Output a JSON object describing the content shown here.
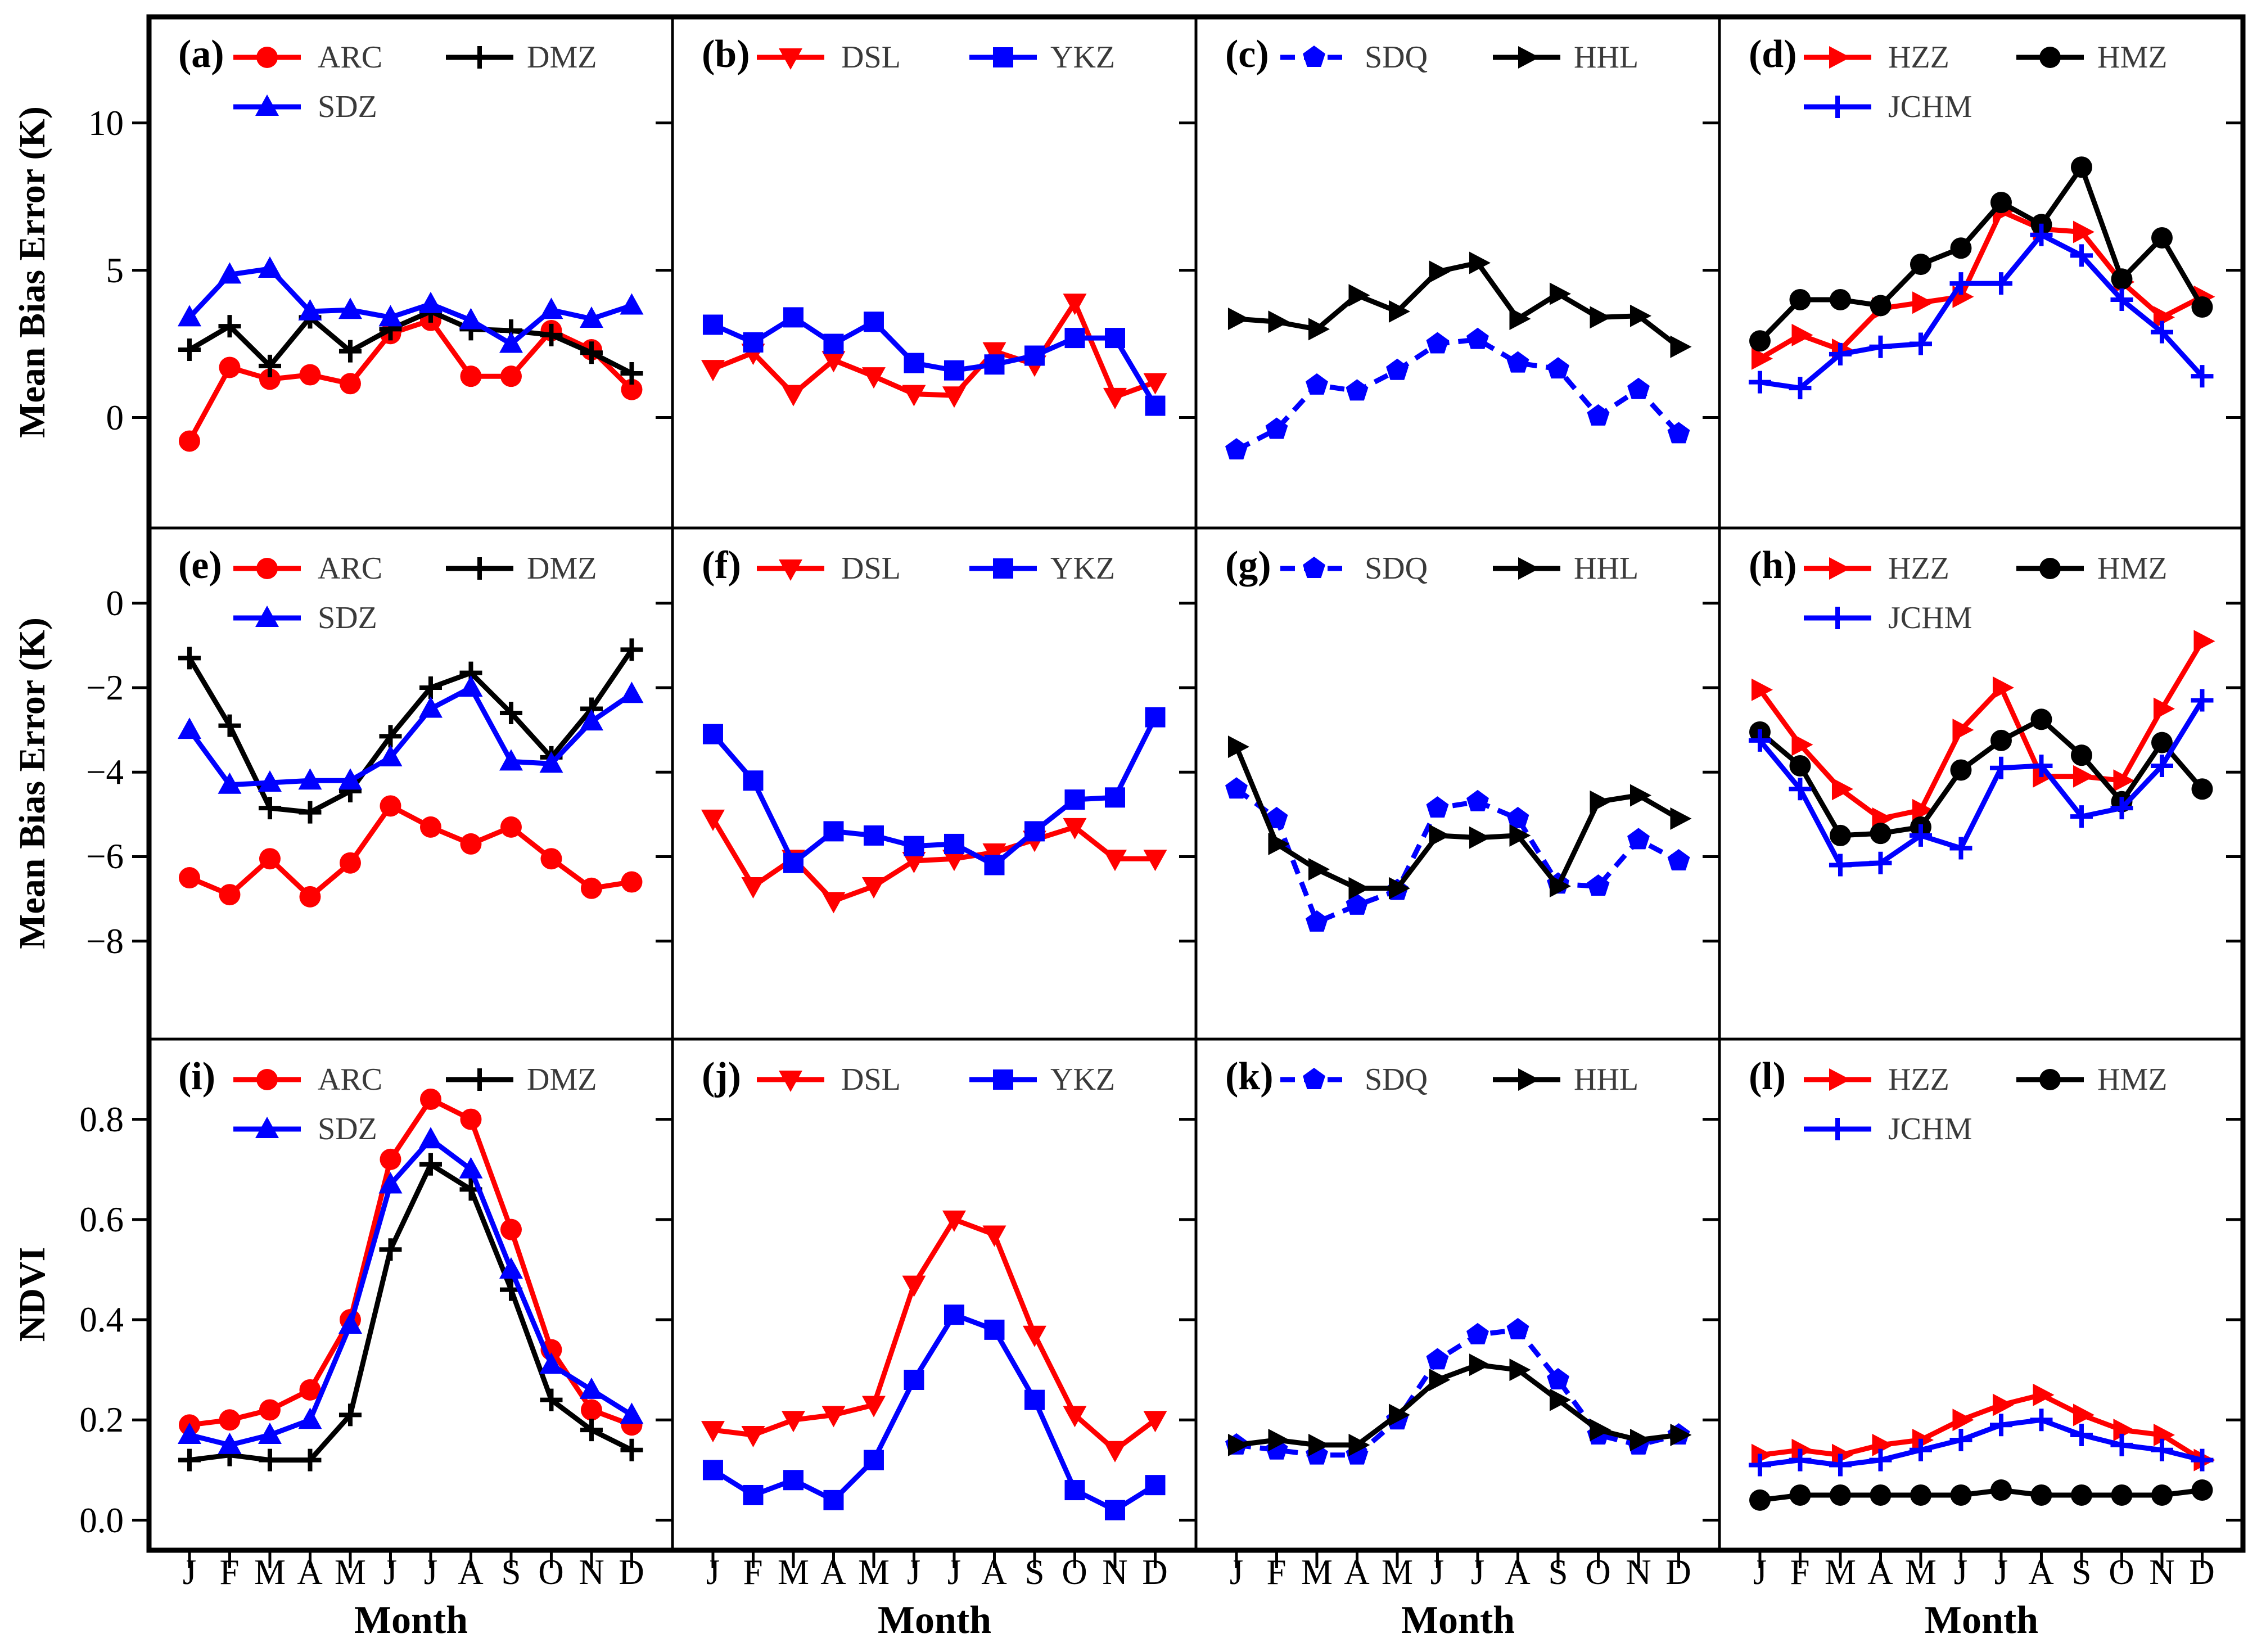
{
  "figure_title": "",
  "xlabel": "Month",
  "month_letters": [
    "J",
    "F",
    "M",
    "A",
    "M",
    "J",
    "J",
    "A",
    "S",
    "O",
    "N",
    "D"
  ],
  "colors": {
    "red": "#FF0000",
    "blue": "#0000FF",
    "black": "#000000",
    "background": "#FFFFFF"
  },
  "rows": [
    {
      "ylabel": "Mean Bias Error (K)",
      "tick_labels": [
        "10",
        "5",
        "0"
      ],
      "tick_values": [
        10,
        5,
        0
      ],
      "vmax": 13.6,
      "vmin": -3.75
    },
    {
      "ylabel": "Mean Bias Error (K)",
      "tick_labels": [
        "0",
        "−2",
        "−4",
        "−6",
        "−8"
      ],
      "tick_values": [
        0,
        -2,
        -4,
        -6,
        -8
      ],
      "vmax": 1.78,
      "vmin": -10.32
    },
    {
      "ylabel": "NDVI",
      "tick_labels": [
        "0.8",
        "0.6",
        "0.4",
        "0.2",
        "0.0"
      ],
      "tick_values": [
        0.8,
        0.6,
        0.4,
        0.2,
        0.0
      ],
      "vmax": 0.96,
      "vmin": -0.06
    }
  ],
  "marker_styles": {
    "ARC": {
      "color": "#FF0000",
      "marker": "circle",
      "dash": false
    },
    "DMZ": {
      "color": "#000000",
      "marker": "plus",
      "dash": false
    },
    "SDZ": {
      "color": "#0000FF",
      "marker": "triangle-up",
      "dash": false
    },
    "DSL": {
      "color": "#FF0000",
      "marker": "triangle-down",
      "dash": false
    },
    "YKZ": {
      "color": "#0000FF",
      "marker": "square",
      "dash": false
    },
    "SDQ": {
      "color": "#0000FF",
      "marker": "pentagon",
      "dash": true
    },
    "HHL": {
      "color": "#000000",
      "marker": "triangle-right",
      "dash": false
    },
    "HZZ": {
      "color": "#FF0000",
      "marker": "triangle-right",
      "dash": false
    },
    "HMZ": {
      "color": "#000000",
      "marker": "circle",
      "dash": false
    },
    "JCHM": {
      "color": "#0000FF",
      "marker": "plus",
      "dash": false
    }
  },
  "chart_data": [
    {
      "panel": "a",
      "row": 0,
      "col": 0,
      "type": "line",
      "x": [
        "J",
        "F",
        "M",
        "A",
        "M",
        "J",
        "J",
        "A",
        "S",
        "O",
        "N",
        "D"
      ],
      "legend_rows": [
        [
          "ARC",
          "DMZ"
        ],
        [
          "SDZ"
        ]
      ],
      "series": [
        {
          "name": "ARC",
          "values": [
            -0.8,
            1.7,
            1.3,
            1.45,
            1.15,
            2.85,
            3.3,
            1.4,
            1.4,
            2.95,
            2.3,
            0.95
          ]
        },
        {
          "name": "DMZ",
          "values": [
            2.3,
            3.1,
            1.75,
            3.4,
            2.25,
            3.0,
            3.6,
            3.0,
            2.95,
            2.8,
            2.2,
            1.5
          ]
        },
        {
          "name": "SDZ",
          "values": [
            3.4,
            4.85,
            5.05,
            3.6,
            3.65,
            3.4,
            3.85,
            3.3,
            2.5,
            3.65,
            3.35,
            3.8
          ]
        }
      ]
    },
    {
      "panel": "b",
      "row": 0,
      "col": 1,
      "type": "line",
      "x": [
        "J",
        "F",
        "M",
        "A",
        "M",
        "J",
        "J",
        "A",
        "S",
        "O",
        "N",
        "D"
      ],
      "legend_rows": [
        [
          "DSL",
          "YKZ"
        ]
      ],
      "series": [
        {
          "name": "DSL",
          "values": [
            1.65,
            2.2,
            0.8,
            1.95,
            1.4,
            0.8,
            0.75,
            2.25,
            1.8,
            3.9,
            0.7,
            1.2
          ]
        },
        {
          "name": "YKZ",
          "values": [
            3.15,
            2.55,
            3.4,
            2.5,
            3.25,
            1.85,
            1.6,
            1.8,
            2.1,
            2.7,
            2.7,
            0.4
          ]
        }
      ]
    },
    {
      "panel": "c",
      "row": 0,
      "col": 2,
      "type": "line",
      "x": [
        "J",
        "F",
        "M",
        "A",
        "M",
        "J",
        "J",
        "A",
        "S",
        "O",
        "N",
        "D"
      ],
      "legend_rows": [
        [
          "SDQ",
          "HHL"
        ]
      ],
      "series": [
        {
          "name": "SDQ",
          "values": [
            -1.1,
            -0.4,
            1.1,
            0.9,
            1.6,
            2.5,
            2.65,
            1.85,
            1.65,
            0.05,
            0.95,
            -0.55
          ]
        },
        {
          "name": "HHL",
          "values": [
            3.35,
            3.25,
            3.0,
            4.15,
            3.6,
            4.95,
            5.25,
            3.35,
            4.2,
            3.4,
            3.45,
            2.4
          ]
        }
      ]
    },
    {
      "panel": "d",
      "row": 0,
      "col": 3,
      "type": "line",
      "x": [
        "J",
        "F",
        "M",
        "A",
        "M",
        "J",
        "J",
        "A",
        "S",
        "O",
        "N",
        "D"
      ],
      "legend_rows": [
        [
          "HZZ",
          "HMZ"
        ],
        [
          "JCHM"
        ]
      ],
      "series": [
        {
          "name": "HZZ",
          "values": [
            2.0,
            2.8,
            2.3,
            3.7,
            3.9,
            4.1,
            7.0,
            6.4,
            6.3,
            4.6,
            3.4,
            4.1
          ]
        },
        {
          "name": "HMZ",
          "values": [
            2.6,
            4.0,
            4.0,
            3.8,
            5.2,
            5.75,
            7.3,
            6.55,
            8.5,
            4.7,
            6.1,
            3.75
          ]
        },
        {
          "name": "JCHM",
          "values": [
            1.2,
            1.0,
            2.15,
            2.4,
            2.5,
            4.55,
            4.55,
            6.2,
            5.5,
            4.0,
            2.9,
            1.4
          ]
        }
      ]
    },
    {
      "panel": "e",
      "row": 1,
      "col": 0,
      "type": "line",
      "x": [
        "J",
        "F",
        "M",
        "A",
        "M",
        "J",
        "J",
        "A",
        "S",
        "O",
        "N",
        "D"
      ],
      "legend_rows": [
        [
          "ARC",
          "DMZ"
        ],
        [
          "SDZ"
        ]
      ],
      "series": [
        {
          "name": "ARC",
          "values": [
            -6.5,
            -6.9,
            -6.05,
            -6.95,
            -6.15,
            -4.8,
            -5.3,
            -5.7,
            -5.3,
            -6.05,
            -6.75,
            -6.6
          ]
        },
        {
          "name": "DMZ",
          "values": [
            -1.3,
            -2.9,
            -4.85,
            -4.95,
            -4.45,
            -3.15,
            -2.0,
            -1.65,
            -2.6,
            -3.65,
            -2.5,
            -1.1
          ]
        },
        {
          "name": "SDZ",
          "values": [
            -3.0,
            -4.3,
            -4.25,
            -4.2,
            -4.2,
            -3.65,
            -2.5,
            -2.0,
            -3.75,
            -3.8,
            -2.8,
            -2.15
          ]
        }
      ]
    },
    {
      "panel": "f",
      "row": 1,
      "col": 1,
      "type": "line",
      "x": [
        "J",
        "F",
        "M",
        "A",
        "M",
        "J",
        "J",
        "A",
        "S",
        "O",
        "N",
        "D"
      ],
      "legend_rows": [
        [
          "DSL",
          "YKZ"
        ]
      ],
      "series": [
        {
          "name": "DSL",
          "values": [
            -5.1,
            -6.7,
            -6.05,
            -7.05,
            -6.7,
            -6.1,
            -6.05,
            -5.9,
            -5.6,
            -5.3,
            -6.05,
            -6.05
          ]
        },
        {
          "name": "YKZ",
          "values": [
            -3.1,
            -4.2,
            -6.15,
            -5.4,
            -5.5,
            -5.75,
            -5.7,
            -6.2,
            -5.4,
            -4.65,
            -4.6,
            -2.7
          ]
        }
      ]
    },
    {
      "panel": "g",
      "row": 1,
      "col": 2,
      "type": "line",
      "x": [
        "J",
        "F",
        "M",
        "A",
        "M",
        "J",
        "J",
        "A",
        "S",
        "O",
        "N",
        "D"
      ],
      "legend_rows": [
        [
          "SDQ",
          "HHL"
        ]
      ],
      "series": [
        {
          "name": "SDQ",
          "values": [
            -4.4,
            -5.1,
            -7.55,
            -7.15,
            -6.8,
            -4.85,
            -4.7,
            -5.1,
            -6.65,
            -6.7,
            -5.6,
            -6.1
          ]
        },
        {
          "name": "HHL",
          "values": [
            -3.4,
            -5.7,
            -6.3,
            -6.75,
            -6.75,
            -5.5,
            -5.55,
            -5.5,
            -6.7,
            -4.7,
            -4.55,
            -5.1
          ]
        }
      ]
    },
    {
      "panel": "h",
      "row": 1,
      "col": 3,
      "type": "line",
      "x": [
        "J",
        "F",
        "M",
        "A",
        "M",
        "J",
        "J",
        "A",
        "S",
        "O",
        "N",
        "D"
      ],
      "legend_rows": [
        [
          "HZZ",
          "HMZ"
        ],
        [
          "JCHM"
        ]
      ],
      "series": [
        {
          "name": "HZZ",
          "values": [
            -2.05,
            -3.35,
            -4.4,
            -5.1,
            -4.9,
            -3.0,
            -2.0,
            -4.1,
            -4.1,
            -4.2,
            -2.5,
            -0.9
          ]
        },
        {
          "name": "HMZ",
          "values": [
            -3.05,
            -3.85,
            -5.5,
            -5.45,
            -5.3,
            -3.95,
            -3.25,
            -2.75,
            -3.6,
            -4.7,
            -3.3,
            -4.4
          ]
        },
        {
          "name": "JCHM",
          "values": [
            -3.25,
            -4.4,
            -6.2,
            -6.15,
            -5.5,
            -5.8,
            -3.9,
            -3.85,
            -5.05,
            -4.85,
            -3.85,
            -2.3
          ]
        }
      ]
    },
    {
      "panel": "i",
      "row": 2,
      "col": 0,
      "type": "line",
      "x": [
        "J",
        "F",
        "M",
        "A",
        "M",
        "J",
        "J",
        "A",
        "S",
        "O",
        "N",
        "D"
      ],
      "legend_rows": [
        [
          "ARC",
          "DMZ"
        ],
        [
          "SDZ"
        ]
      ],
      "series": [
        {
          "name": "ARC",
          "values": [
            0.19,
            0.2,
            0.22,
            0.26,
            0.4,
            0.72,
            0.84,
            0.8,
            0.58,
            0.34,
            0.22,
            0.19
          ]
        },
        {
          "name": "DMZ",
          "values": [
            0.12,
            0.13,
            0.12,
            0.12,
            0.21,
            0.54,
            0.71,
            0.66,
            0.46,
            0.24,
            0.18,
            0.14
          ]
        },
        {
          "name": "SDZ",
          "values": [
            0.17,
            0.15,
            0.17,
            0.2,
            0.39,
            0.67,
            0.76,
            0.7,
            0.5,
            0.31,
            0.26,
            0.21
          ]
        }
      ]
    },
    {
      "panel": "j",
      "row": 2,
      "col": 1,
      "type": "line",
      "x": [
        "J",
        "F",
        "M",
        "A",
        "M",
        "J",
        "J",
        "A",
        "S",
        "O",
        "N",
        "D"
      ],
      "legend_rows": [
        [
          "DSL",
          "YKZ"
        ]
      ],
      "series": [
        {
          "name": "DSL",
          "values": [
            0.18,
            0.17,
            0.2,
            0.21,
            0.23,
            0.47,
            0.6,
            0.57,
            0.37,
            0.21,
            0.14,
            0.2
          ]
        },
        {
          "name": "YKZ",
          "values": [
            0.1,
            0.05,
            0.08,
            0.04,
            0.12,
            0.28,
            0.41,
            0.38,
            0.24,
            0.06,
            0.02,
            0.07
          ]
        }
      ]
    },
    {
      "panel": "k",
      "row": 2,
      "col": 2,
      "type": "line",
      "x": [
        "J",
        "F",
        "M",
        "A",
        "M",
        "J",
        "J",
        "A",
        "S",
        "O",
        "N",
        "D"
      ],
      "legend_rows": [
        [
          "SDQ",
          "HHL"
        ]
      ],
      "series": [
        {
          "name": "SDQ",
          "values": [
            0.15,
            0.14,
            0.13,
            0.13,
            0.2,
            0.32,
            0.37,
            0.38,
            0.28,
            0.17,
            0.15,
            0.17
          ]
        },
        {
          "name": "HHL",
          "values": [
            0.15,
            0.16,
            0.15,
            0.15,
            0.21,
            0.28,
            0.31,
            0.3,
            0.24,
            0.18,
            0.16,
            0.17
          ]
        }
      ]
    },
    {
      "panel": "l",
      "row": 2,
      "col": 3,
      "type": "line",
      "x": [
        "J",
        "F",
        "M",
        "A",
        "M",
        "J",
        "J",
        "A",
        "S",
        "O",
        "N",
        "D"
      ],
      "legend_rows": [
        [
          "HZZ",
          "HMZ"
        ],
        [
          "JCHM"
        ]
      ],
      "series": [
        {
          "name": "HZZ",
          "values": [
            0.13,
            0.14,
            0.13,
            0.15,
            0.16,
            0.2,
            0.23,
            0.25,
            0.21,
            0.18,
            0.17,
            0.12
          ]
        },
        {
          "name": "HMZ",
          "values": [
            0.04,
            0.05,
            0.05,
            0.05,
            0.05,
            0.05,
            0.06,
            0.05,
            0.05,
            0.05,
            0.05,
            0.06
          ]
        },
        {
          "name": "JCHM",
          "values": [
            0.11,
            0.12,
            0.11,
            0.12,
            0.14,
            0.16,
            0.19,
            0.2,
            0.17,
            0.15,
            0.14,
            0.12
          ]
        }
      ]
    }
  ]
}
